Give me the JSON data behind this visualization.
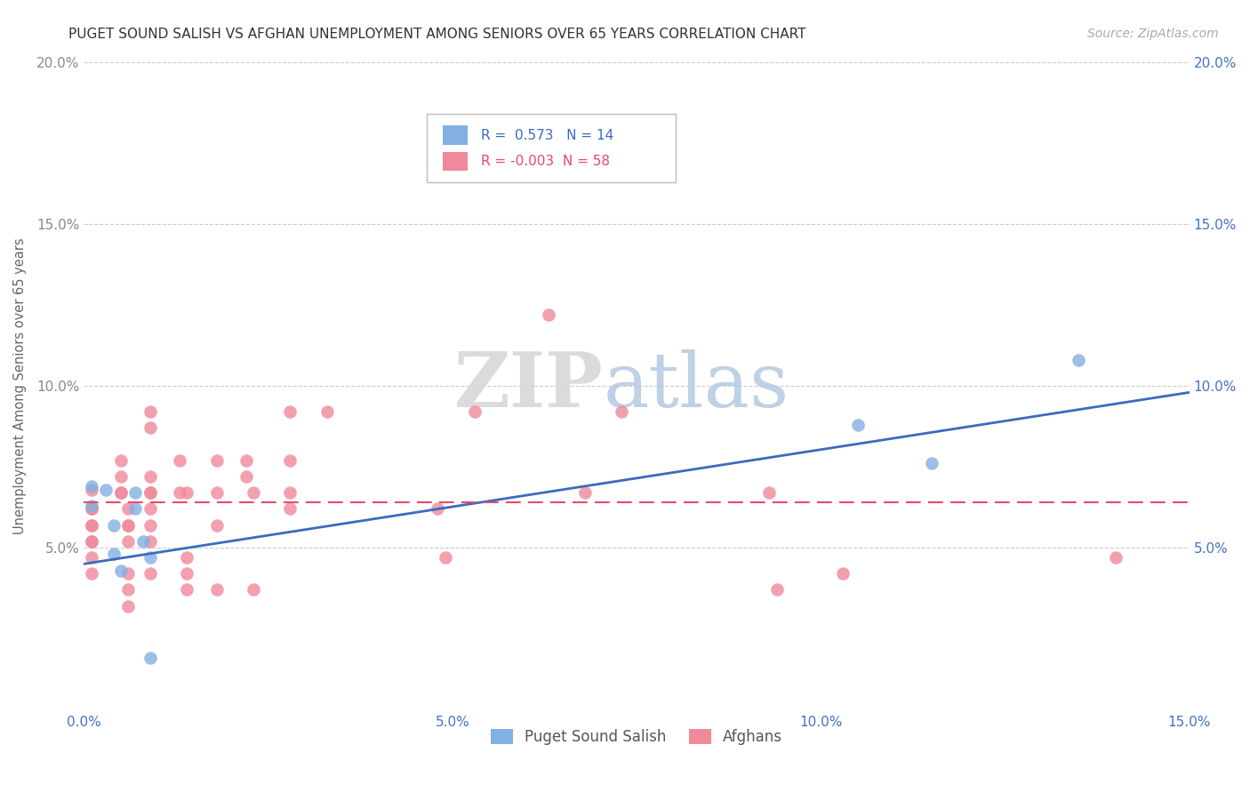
{
  "title": "PUGET SOUND SALISH VS AFGHAN UNEMPLOYMENT AMONG SENIORS OVER 65 YEARS CORRELATION CHART",
  "source": "Source: ZipAtlas.com",
  "ylabel": "Unemployment Among Seniors over 65 years",
  "xlim": [
    0.0,
    0.15
  ],
  "ylim": [
    0.0,
    0.2
  ],
  "xticks": [
    0.0,
    0.05,
    0.1,
    0.15
  ],
  "yticks": [
    0.0,
    0.05,
    0.1,
    0.15,
    0.2
  ],
  "xticklabels": [
    "0.0%",
    "5.0%",
    "10.0%",
    "15.0%"
  ],
  "yticklabels_left": [
    "",
    "5.0%",
    "10.0%",
    "15.0%",
    "20.0%"
  ],
  "yticklabels_right": [
    "",
    "5.0%",
    "10.0%",
    "15.0%",
    "20.0%"
  ],
  "grid_color": "#cccccc",
  "background_color": "#ffffff",
  "legend_R1": "0.573",
  "legend_N1": "14",
  "legend_R2": "-0.003",
  "legend_N2": "58",
  "color_salish": "#82b0e0",
  "color_afghan": "#f0899a",
  "line_color_salish": "#3a6bbf",
  "line_color_afghan": "#e8496a",
  "watermark_zip": "ZIP",
  "watermark_atlas": "atlas",
  "label_salish": "Puget Sound Salish",
  "label_afghan": "Afghans",
  "salish_x": [
    0.001,
    0.001,
    0.003,
    0.004,
    0.004,
    0.005,
    0.007,
    0.007,
    0.008,
    0.009,
    0.009,
    0.105,
    0.115,
    0.135
  ],
  "salish_y": [
    0.069,
    0.063,
    0.068,
    0.057,
    0.048,
    0.043,
    0.067,
    0.062,
    0.052,
    0.047,
    0.016,
    0.088,
    0.076,
    0.108
  ],
  "afghan_x": [
    0.001,
    0.001,
    0.001,
    0.001,
    0.001,
    0.001,
    0.001,
    0.001,
    0.001,
    0.005,
    0.005,
    0.005,
    0.005,
    0.006,
    0.006,
    0.006,
    0.006,
    0.006,
    0.006,
    0.006,
    0.009,
    0.009,
    0.009,
    0.009,
    0.009,
    0.009,
    0.009,
    0.009,
    0.009,
    0.013,
    0.013,
    0.014,
    0.014,
    0.014,
    0.014,
    0.018,
    0.018,
    0.018,
    0.018,
    0.022,
    0.022,
    0.023,
    0.023,
    0.028,
    0.028,
    0.028,
    0.028,
    0.033,
    0.048,
    0.049,
    0.053,
    0.063,
    0.068,
    0.073,
    0.093,
    0.094,
    0.103,
    0.14
  ],
  "afghan_y": [
    0.068,
    0.062,
    0.062,
    0.057,
    0.057,
    0.052,
    0.052,
    0.047,
    0.042,
    0.077,
    0.072,
    0.067,
    0.067,
    0.062,
    0.057,
    0.057,
    0.052,
    0.042,
    0.037,
    0.032,
    0.092,
    0.087,
    0.072,
    0.067,
    0.067,
    0.062,
    0.057,
    0.052,
    0.042,
    0.077,
    0.067,
    0.067,
    0.047,
    0.042,
    0.037,
    0.077,
    0.067,
    0.057,
    0.037,
    0.077,
    0.072,
    0.067,
    0.037,
    0.092,
    0.077,
    0.067,
    0.062,
    0.092,
    0.062,
    0.047,
    0.092,
    0.122,
    0.067,
    0.092,
    0.067,
    0.037,
    0.042,
    0.047
  ],
  "salish_line_x0": 0.0,
  "salish_line_y0": 0.045,
  "salish_line_x1": 0.15,
  "salish_line_y1": 0.098,
  "afghan_line_x0": 0.0,
  "afghan_line_y0": 0.064,
  "afghan_line_x1": 0.15,
  "afghan_line_y1": 0.064
}
